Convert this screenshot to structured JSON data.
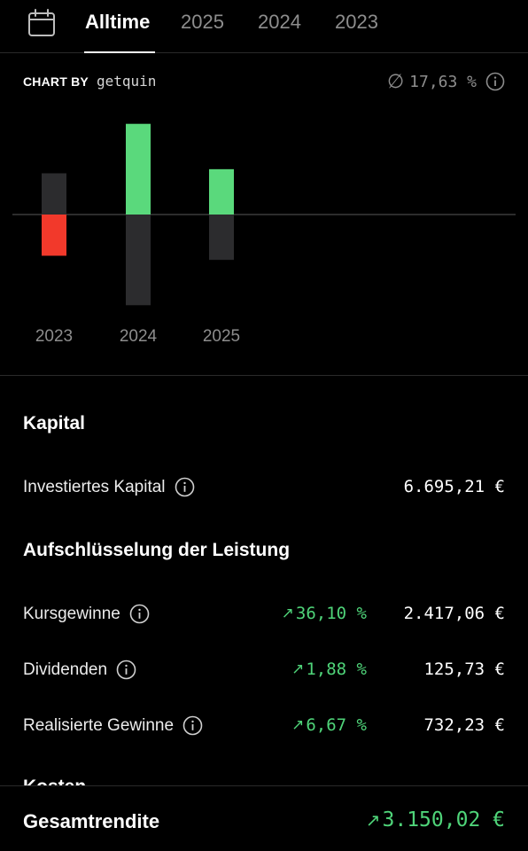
{
  "tabs": [
    {
      "label": "Alltime",
      "active": true
    },
    {
      "label": "2025",
      "active": false
    },
    {
      "label": "2024",
      "active": false
    },
    {
      "label": "2023",
      "active": false
    }
  ],
  "chart_header": {
    "chart_by": "CHART BY",
    "brand": "getquin",
    "avg_symbol": "∅",
    "avg_value": "17,63 %"
  },
  "colors": {
    "positive": "#5ad97c",
    "negative": "#f2392b",
    "neutral_bar": "#2c2c2e",
    "text_green": "#4fd479"
  },
  "chart_data": {
    "type": "bar",
    "categories": [
      "2023",
      "2024",
      "2025"
    ],
    "series": [
      {
        "values": [
          -1.0,
          2.2,
          1.1
        ]
      },
      {
        "values": [
          1.0,
          -2.2,
          -1.1
        ]
      }
    ]
  },
  "kapital": {
    "title": "Kapital",
    "invested_label": "Investiertes Kapital",
    "invested_value": "6.695,21 €"
  },
  "breakdown": {
    "title": "Aufschlüsselung der Leistung",
    "rows": [
      {
        "label": "Kursgewinne",
        "arrow": "↗",
        "pct": "36,10 %",
        "value": "2.417,06 €"
      },
      {
        "label": "Dividenden",
        "arrow": "↗",
        "pct": "1,88 %",
        "value": "125,73 €"
      },
      {
        "label": "Realisierte Gewinne",
        "arrow": "↗",
        "pct": "6,67 %",
        "value": "732,23 €"
      }
    ]
  },
  "cut_section_title": "Kosten",
  "footer": {
    "label": "Gesamtrendite",
    "arrow": "↗",
    "value": "3.150,02 €"
  }
}
